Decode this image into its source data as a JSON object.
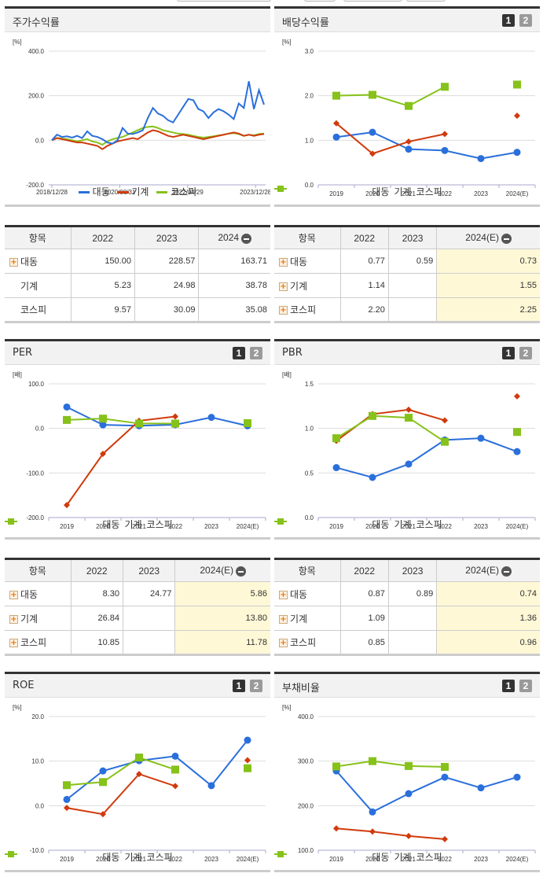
{
  "panels": {
    "stock_return": {
      "title": "주가수익률"
    },
    "dividend_yield": {
      "title": "배당수익률",
      "pages": [
        "1",
        "2"
      ]
    },
    "per": {
      "title": "PER",
      "pages": [
        "1",
        "2"
      ]
    },
    "pbr": {
      "title": "PBR",
      "pages": [
        "1",
        "2"
      ]
    },
    "roe": {
      "title": "ROE",
      "pages": [
        "1",
        "2"
      ]
    },
    "debt_ratio": {
      "title": "부채비율",
      "pages": [
        "1",
        "2"
      ]
    }
  },
  "legend": {
    "s1": "대동",
    "s2": "기계",
    "s3": "코스피"
  },
  "colors": {
    "s1": "#2a6fdb",
    "s2": "#d03a0c",
    "s3": "#86c21a"
  },
  "tables": {
    "stock_return": {
      "headers": [
        "항목",
        "2022",
        "2023",
        "2024"
      ],
      "rows": [
        {
          "label": "대동",
          "expand": true,
          "values": [
            "150.00",
            "228.57",
            "163.71"
          ]
        },
        {
          "label": "기계",
          "expand": false,
          "values": [
            "5.23",
            "24.98",
            "38.78"
          ]
        },
        {
          "label": "코스피",
          "expand": false,
          "values": [
            "9.57",
            "30.09",
            "35.08"
          ]
        }
      ]
    },
    "dividend_yield": {
      "headers": [
        "항목",
        "2022",
        "2023",
        "2024(E)"
      ],
      "rows": [
        {
          "label": "대동",
          "expand": true,
          "values": [
            "0.77",
            "0.59",
            "0.73"
          ]
        },
        {
          "label": "기계",
          "expand": true,
          "values": [
            "1.14",
            "",
            "1.55"
          ]
        },
        {
          "label": "코스피",
          "expand": true,
          "values": [
            "2.20",
            "",
            "2.25"
          ]
        }
      ]
    },
    "per": {
      "headers": [
        "항목",
        "2022",
        "2023",
        "2024(E)"
      ],
      "rows": [
        {
          "label": "대동",
          "expand": true,
          "values": [
            "8.30",
            "24.77",
            "5.86"
          ]
        },
        {
          "label": "기계",
          "expand": true,
          "values": [
            "26.84",
            "",
            "13.80"
          ]
        },
        {
          "label": "코스피",
          "expand": true,
          "values": [
            "10.85",
            "",
            "11.78"
          ]
        }
      ]
    },
    "pbr": {
      "headers": [
        "항목",
        "2022",
        "2023",
        "2024(E)"
      ],
      "rows": [
        {
          "label": "대동",
          "expand": true,
          "values": [
            "0.87",
            "0.89",
            "0.74"
          ]
        },
        {
          "label": "기계",
          "expand": true,
          "values": [
            "1.09",
            "",
            "1.36"
          ]
        },
        {
          "label": "코스피",
          "expand": true,
          "values": [
            "0.85",
            "",
            "0.96"
          ]
        }
      ]
    }
  },
  "chart_data": [
    {
      "id": "stock_return",
      "type": "line",
      "title": "주가수익률",
      "ylabel": "[%]",
      "ylim": [
        -200,
        400
      ],
      "yticks": [
        "400.0",
        "200.0",
        "0.0",
        "-200.0"
      ],
      "x_tick_labels": [
        "2018/12/28",
        "2020/08/31",
        "2022/04/29",
        "2023/12/28"
      ],
      "grid": true,
      "legend_position": "bottom",
      "series": [
        {
          "name": "대동",
          "values": [
            0,
            25,
            15,
            18,
            12,
            20,
            10,
            40,
            20,
            15,
            5,
            -10,
            -15,
            0,
            55,
            30,
            28,
            35,
            45,
            100,
            145,
            120,
            110,
            90,
            80,
            115,
            150,
            185,
            180,
            140,
            130,
            100,
            125,
            140,
            130,
            115,
            95,
            165,
            145,
            265,
            140,
            225,
            160
          ]
        },
        {
          "name": "기계",
          "values": [
            0,
            10,
            5,
            0,
            -5,
            -10,
            -10,
            -15,
            -20,
            -25,
            -40,
            -25,
            -15,
            -5,
            0,
            5,
            10,
            5,
            20,
            35,
            45,
            40,
            30,
            20,
            15,
            20,
            25,
            20,
            15,
            10,
            5,
            10,
            15,
            20,
            25,
            30,
            35,
            30,
            20,
            25,
            20,
            25,
            28
          ]
        },
        {
          "name": "코스피",
          "values": [
            0,
            10,
            8,
            5,
            0,
            -5,
            0,
            5,
            -5,
            -10,
            -20,
            -5,
            5,
            10,
            15,
            25,
            35,
            45,
            55,
            60,
            62,
            55,
            45,
            40,
            35,
            30,
            28,
            25,
            20,
            15,
            12,
            15,
            18,
            22,
            25,
            30,
            32,
            28,
            20,
            25,
            22,
            28,
            30
          ]
        }
      ]
    },
    {
      "id": "dividend_yield",
      "type": "line",
      "title": "배당수익률",
      "ylabel": "[%]",
      "ylim": [
        0,
        3
      ],
      "yticks": [
        "3.0",
        "2.0",
        "1.0",
        "0.0"
      ],
      "categories": [
        "2019",
        "2020",
        "2021",
        "2022",
        "2023",
        "2024(E)"
      ],
      "series": [
        {
          "name": "대동",
          "values": [
            1.07,
            1.18,
            0.8,
            0.77,
            0.59,
            0.73
          ]
        },
        {
          "name": "기계",
          "values": [
            1.38,
            0.7,
            0.97,
            1.14,
            null,
            1.55
          ]
        },
        {
          "name": "코스피",
          "values": [
            2.0,
            2.02,
            1.77,
            2.2,
            null,
            2.25
          ]
        }
      ]
    },
    {
      "id": "per",
      "type": "line",
      "title": "PER",
      "ylabel": "[배]",
      "ylim": [
        -200,
        100
      ],
      "yticks": [
        "100.0",
        "0.0",
        "-100.0",
        "-200.0"
      ],
      "categories": [
        "2019",
        "2020",
        "2021",
        "2022",
        "2023",
        "2024(E)"
      ],
      "series": [
        {
          "name": "대동",
          "values": [
            48,
            8,
            6,
            8.3,
            24.77,
            5.86
          ]
        },
        {
          "name": "기계",
          "values": [
            -172,
            -57,
            17,
            26.84,
            null,
            13.8
          ]
        },
        {
          "name": "코스피",
          "values": [
            19,
            22,
            11,
            10.85,
            null,
            11.78
          ]
        }
      ]
    },
    {
      "id": "pbr",
      "type": "line",
      "title": "PBR",
      "ylabel": "[배]",
      "ylim": [
        0,
        1.5
      ],
      "yticks": [
        "1.5",
        "1.0",
        "0.5",
        "0.0"
      ],
      "categories": [
        "2019",
        "2020",
        "2021",
        "2022",
        "2023",
        "2024(E)"
      ],
      "series": [
        {
          "name": "대동",
          "values": [
            0.56,
            0.45,
            0.6,
            0.87,
            0.89,
            0.74
          ]
        },
        {
          "name": "기계",
          "values": [
            0.86,
            1.16,
            1.21,
            1.09,
            null,
            1.36
          ]
        },
        {
          "name": "코스피",
          "values": [
            0.89,
            1.14,
            1.12,
            0.85,
            null,
            0.96
          ]
        }
      ]
    },
    {
      "id": "roe",
      "type": "line",
      "title": "ROE",
      "ylabel": "[%]",
      "ylim": [
        -10,
        20
      ],
      "yticks": [
        "20.0",
        "10.0",
        "0.0",
        "-10.0"
      ],
      "categories": [
        "2019",
        "2020",
        "2021",
        "2022",
        "2023",
        "2024(E)"
      ],
      "series": [
        {
          "name": "대동",
          "values": [
            1.4,
            7.8,
            10.1,
            11.1,
            4.5,
            14.7
          ]
        },
        {
          "name": "기계",
          "values": [
            -0.5,
            -1.9,
            7.1,
            4.4,
            null,
            10.2
          ]
        },
        {
          "name": "코스피",
          "values": [
            4.6,
            5.3,
            10.8,
            8.1,
            null,
            8.4
          ]
        }
      ]
    },
    {
      "id": "debt_ratio",
      "type": "line",
      "title": "부채비율",
      "ylabel": "[%]",
      "ylim": [
        100,
        400
      ],
      "yticks": [
        "400.0",
        "300.0",
        "200.0",
        "100.0"
      ],
      "categories": [
        "2019",
        "2020",
        "2021",
        "2022",
        "2023",
        "2024(E)"
      ],
      "series": [
        {
          "name": "대동",
          "values": [
            278,
            186,
            227,
            264,
            240,
            264
          ]
        },
        {
          "name": "기계",
          "values": [
            149,
            142,
            132,
            125,
            null,
            null
          ]
        },
        {
          "name": "코스피",
          "values": [
            288,
            300,
            289,
            287,
            null,
            null
          ]
        }
      ]
    }
  ]
}
